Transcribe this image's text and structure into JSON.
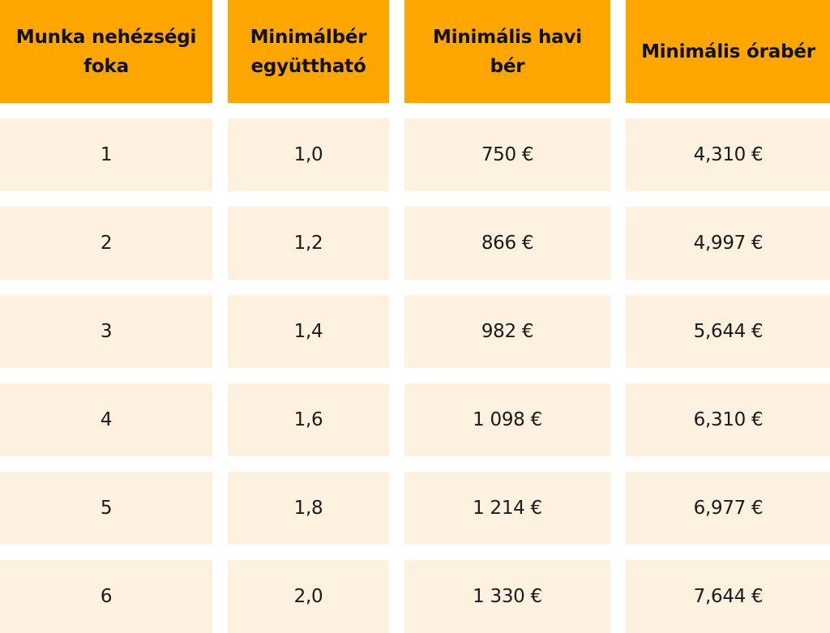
{
  "table": {
    "headers": [
      "Munka nehézségi foka",
      "Minimálbér együttható",
      "Minimális havi bér",
      "Minimális órabér"
    ],
    "rows": [
      [
        "1",
        "1,0",
        "750 €",
        "4,310 €"
      ],
      [
        "2",
        "1,2",
        "866 €",
        "4,997 €"
      ],
      [
        "3",
        "1,4",
        "982 €",
        "5,644 €"
      ],
      [
        "4",
        "1,6",
        "1 098 €",
        "6,310 €"
      ],
      [
        "5",
        "1,8",
        "1 214 €",
        "6,977 €"
      ],
      [
        "6",
        "2,0",
        "1 330 €",
        "7,644 €"
      ]
    ],
    "colors": {
      "header_bg": "#FFA600",
      "cell_bg": "#FEF1DF"
    }
  }
}
